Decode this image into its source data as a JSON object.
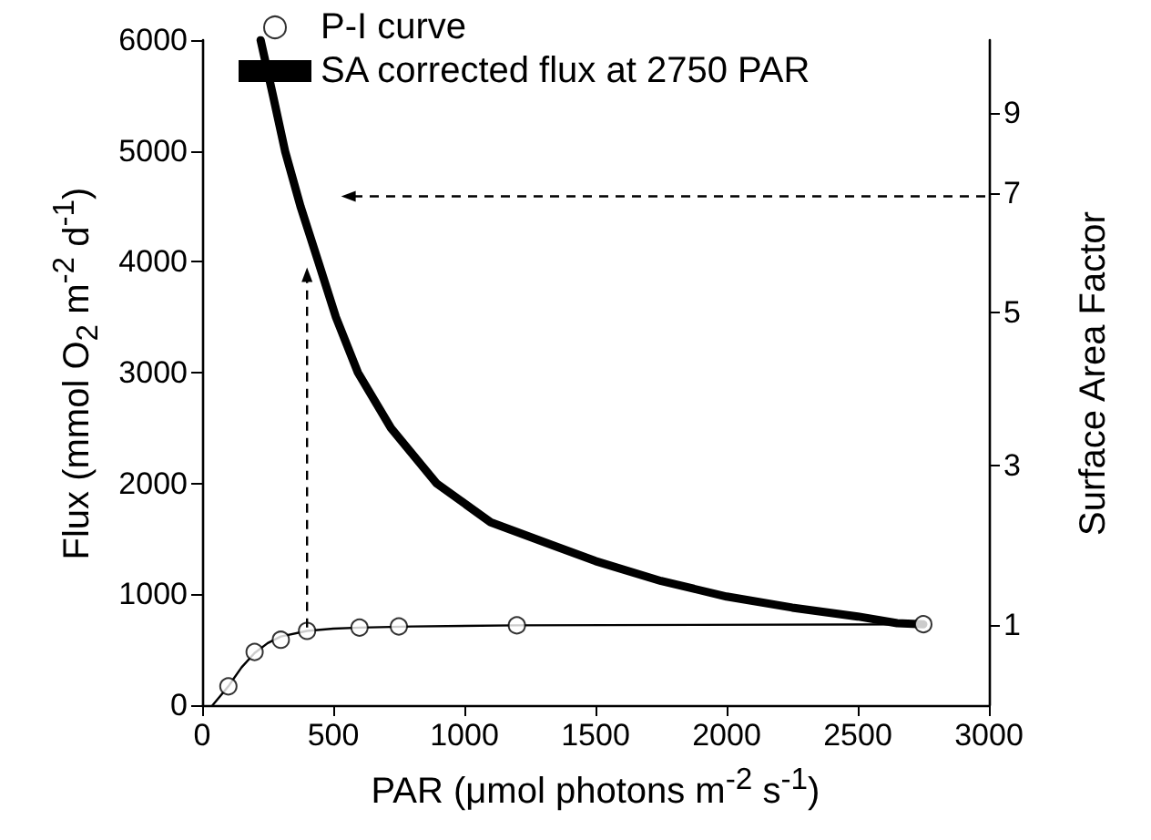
{
  "chart_data": {
    "type": "scatter",
    "xlabel": "PAR (μmol photons m$^{-2}$ s$^{-1}$)",
    "ylabel": "Flux (mmol O$_{2}$ m$^{-2}$ d$^{-1}$)",
    "y2label": "Surface Area Factor",
    "xlim": [
      0,
      3000
    ],
    "xticks": [
      0,
      500,
      1000,
      1500,
      2000,
      2500,
      3000
    ],
    "ylim": [
      0,
      6000
    ],
    "yticks": [
      0,
      1000,
      2000,
      3000,
      4000,
      5000,
      6000
    ],
    "y2_categories": [
      null,
      null,
      null,
      null,
      null,
      null,
      null,
      null,
      null,
      null,
      null,
      "9",
      null,
      null,
      null,
      null,
      null,
      null,
      null,
      null,
      null,
      null,
      null,
      "7",
      null,
      null,
      null,
      null,
      null,
      null,
      null,
      null,
      null,
      null,
      null,
      null,
      null,
      null,
      null,
      null,
      null,
      "5",
      null,
      null,
      null,
      null,
      null,
      null,
      null,
      null,
      null,
      null,
      null,
      null,
      null,
      null,
      null,
      null,
      null,
      null,
      null,
      null,
      null,
      null,
      "3",
      null,
      null,
      null,
      null,
      null,
      null,
      null,
      null,
      null,
      null,
      null,
      null,
      null,
      null,
      null,
      null,
      null,
      null,
      null,
      null,
      null,
      null,
      null,
      "1",
      null,
      null,
      null,
      null,
      null,
      null,
      null,
      null,
      null,
      null,
      null,
      null
    ],
    "grid": false,
    "legend": "top left",
    "series": [
      {
        "name": "P-I curve",
        "marker": "circle",
        "color": "#000000",
        "x": [
          100,
          200,
          300,
          400,
          600,
          750,
          1200,
          2750
        ],
        "values": [
          170,
          480,
          590,
          670,
          700,
          710,
          720,
          730
        ]
      },
      {
        "type": "line",
        "marker": "none",
        "color": "#000000",
        "x": [
          40,
          100,
          150,
          200,
          250,
          300,
          400,
          500,
          600,
          800,
          1200,
          2750
        ],
        "values": [
          0,
          170,
          340,
          470,
          560,
          620,
          670,
          690,
          700,
          710,
          720,
          730
        ]
      },
      {
        "name": "SA corrected flux at 2750 PAR",
        "type": "line",
        "marker": "none",
        "color": "#000000",
        "x": [
          223,
          270,
          316,
          375,
          443,
          510,
          594,
          720,
          894,
          1100,
          1339,
          1500,
          1750,
          2000,
          2250,
          2500,
          2650,
          2750
        ],
        "values": [
          6000,
          5500,
          5000,
          4500,
          4000,
          3500,
          3000,
          2500,
          2000,
          1650,
          1440,
          1300,
          1120,
          980,
          880,
          800,
          740,
          730
        ]
      }
    ]
  }
}
